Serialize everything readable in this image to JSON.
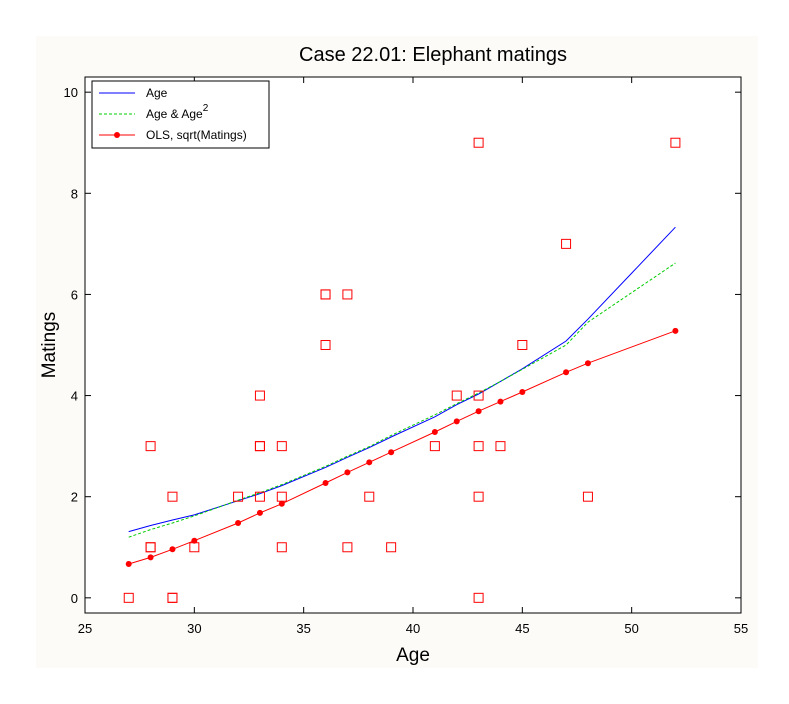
{
  "chart_data": {
    "type": "scatter",
    "title": "Case 22.01: Elephant matings",
    "xlabel": "Age",
    "ylabel": "Matings",
    "xlim": [
      25,
      55
    ],
    "ylim": [
      -0.3,
      10.3
    ],
    "xticks": [
      25,
      30,
      35,
      40,
      45,
      50,
      55
    ],
    "yticks": [
      0,
      2,
      4,
      6,
      8,
      10
    ],
    "grid": false,
    "legend_position": "top-left",
    "observed": {
      "x": [
        27,
        28,
        28,
        28,
        29,
        29,
        29,
        30,
        32,
        33,
        33,
        33,
        33,
        34,
        34,
        34,
        36,
        36,
        36,
        37,
        37,
        38,
        39,
        41,
        42,
        43,
        43,
        43,
        43,
        43,
        44,
        45,
        47,
        48,
        52
      ],
      "y": [
        0,
        1,
        1,
        3,
        0,
        0,
        2,
        1,
        2,
        2,
        3,
        3,
        4,
        1,
        2,
        3,
        5,
        6,
        6,
        1,
        6,
        2,
        1,
        3,
        4,
        0,
        2,
        3,
        4,
        9,
        3,
        5,
        7,
        2,
        9
      ],
      "marker": "open-square",
      "color": "#ff0000"
    },
    "series": [
      {
        "name": "Age",
        "style": "solid",
        "color": "#0000ff",
        "x": [
          27,
          28,
          29,
          30,
          32,
          33,
          34,
          36,
          37,
          38,
          39,
          41,
          42,
          43,
          44,
          45,
          47,
          48,
          52
        ],
        "y": [
          1.31,
          1.43,
          1.54,
          1.64,
          1.92,
          2.06,
          2.22,
          2.58,
          2.78,
          2.97,
          3.18,
          3.58,
          3.82,
          4.03,
          4.28,
          4.53,
          5.08,
          5.51,
          7.33
        ]
      },
      {
        "name": "Age & Age",
        "name_superscript": "2",
        "style": "dashed",
        "color": "#00cc00",
        "x": [
          27,
          28,
          29,
          30,
          32,
          33,
          34,
          36,
          37,
          38,
          39,
          41,
          42,
          43,
          44,
          45,
          47,
          48,
          52
        ],
        "y": [
          1.2,
          1.35,
          1.48,
          1.62,
          1.93,
          2.08,
          2.24,
          2.6,
          2.8,
          2.99,
          3.21,
          3.62,
          3.84,
          4.05,
          4.28,
          4.52,
          5.0,
          5.45,
          6.62
        ]
      },
      {
        "name": "OLS, sqrt(Matings)",
        "style": "solid-with-dots",
        "color": "#ff0000",
        "x": [
          27,
          28,
          29,
          30,
          32,
          33,
          34,
          36,
          37,
          38,
          39,
          41,
          42,
          43,
          44,
          45,
          47,
          48,
          52
        ],
        "y": [
          0.67,
          0.8,
          0.96,
          1.13,
          1.48,
          1.68,
          1.86,
          2.27,
          2.48,
          2.68,
          2.88,
          3.28,
          3.49,
          3.69,
          3.88,
          4.07,
          4.46,
          4.64,
          5.28
        ]
      }
    ]
  }
}
